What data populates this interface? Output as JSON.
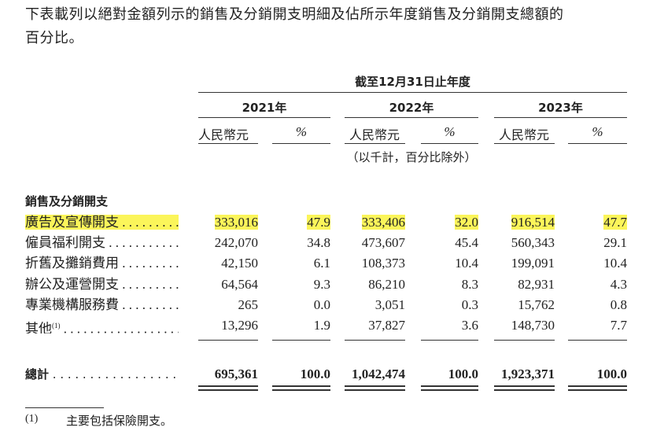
{
  "intro": {
    "line1": "下表載列以絕對金額列示的銷售及分銷開支明細及佔所示年度銷售及分銷開支總額的",
    "line2": "百分比。"
  },
  "table": {
    "period_header": "截至12月31日止年度",
    "years": [
      "2021年",
      "2022年",
      "2023年"
    ],
    "currency_label": "人民幣元",
    "percent_label": "%",
    "unit_note": "（以千計，百分比除外）",
    "section_title": "銷售及分銷開支",
    "highlight_color": "#fbf55a",
    "rows": [
      {
        "label": "廣告及宣傳開支",
        "highlighted": true,
        "values": [
          "333,016",
          "47.9",
          "333,406",
          "32.0",
          "916,514",
          "47.7"
        ]
      },
      {
        "label": "僱員福利開支",
        "highlighted": false,
        "values": [
          "242,070",
          "34.8",
          "473,607",
          "45.4",
          "560,343",
          "29.1"
        ]
      },
      {
        "label": "折舊及攤銷費用",
        "highlighted": false,
        "values": [
          "42,150",
          "6.1",
          "108,373",
          "10.4",
          "199,091",
          "10.4"
        ]
      },
      {
        "label": "辦公及運營開支",
        "highlighted": false,
        "values": [
          "64,564",
          "9.3",
          "86,210",
          "8.3",
          "82,931",
          "4.3"
        ]
      },
      {
        "label": "專業機構服務費",
        "highlighted": false,
        "values": [
          "265",
          "0.0",
          "3,051",
          "0.3",
          "15,762",
          "0.8"
        ]
      },
      {
        "label": "其他",
        "footnote_mark": "(1)",
        "highlighted": false,
        "values": [
          "13,296",
          "1.9",
          "37,827",
          "3.6",
          "148,730",
          "7.7"
        ]
      }
    ],
    "total": {
      "label": "總計",
      "values": [
        "695,361",
        "100.0",
        "1,042,474",
        "100.0",
        "1,923,371",
        "100.0"
      ]
    }
  },
  "footnote": {
    "mark": "(1)",
    "text": "主要包括保險開支。"
  }
}
